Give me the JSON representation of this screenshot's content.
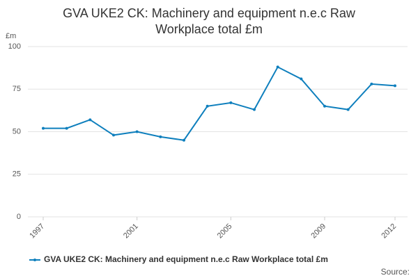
{
  "chart_data": {
    "type": "line",
    "title": "GVA UKE2 CK: Machinery and equipment n.e.c Raw Workplace total £m",
    "y_label": "£m",
    "x": [
      1997,
      1998,
      1999,
      2000,
      2001,
      2002,
      2003,
      2004,
      2005,
      2006,
      2007,
      2008,
      2009,
      2010,
      2011,
      2012
    ],
    "series": [
      {
        "name": "GVA UKE2 CK: Machinery and equipment n.e.c Raw Workplace total £m",
        "color": "#0e7fbd",
        "values": [
          52,
          52,
          57,
          48,
          50,
          47,
          45,
          65,
          67,
          63,
          88,
          81,
          65,
          63,
          78,
          77
        ]
      }
    ],
    "xlim": [
      1997,
      2012
    ],
    "xticks": [
      1997,
      2001,
      2005,
      2009,
      2012
    ],
    "ylim": [
      0,
      100
    ],
    "yticks": [
      0,
      25,
      50,
      75,
      100
    ],
    "grid": true,
    "source": "Source:"
  }
}
